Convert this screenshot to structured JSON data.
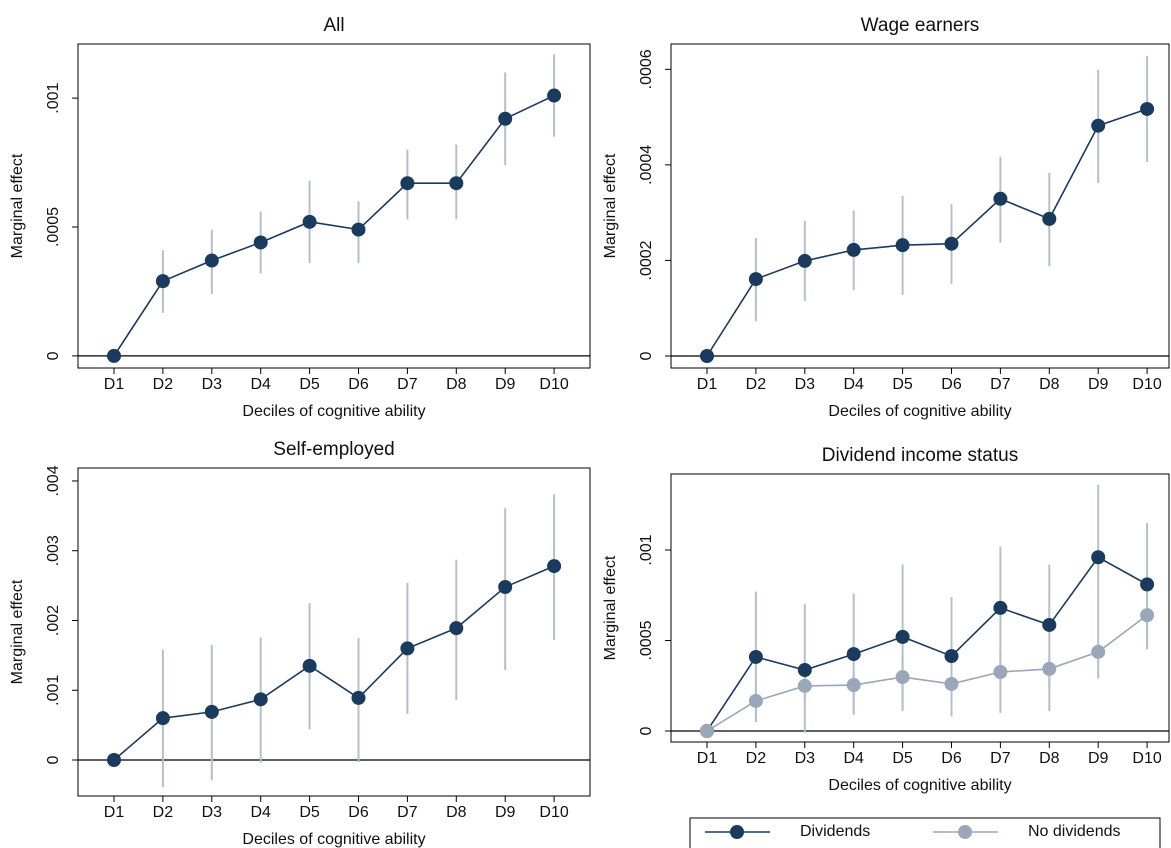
{
  "chart_data": [
    {
      "type": "line",
      "title": "All",
      "x_label": "Deciles of cognitive ability",
      "y_label": "Marginal effect",
      "categories": [
        "D1",
        "D2",
        "D3",
        "D4",
        "D5",
        "D6",
        "D7",
        "D8",
        "D9",
        "D10"
      ],
      "color": "#1a3a5e",
      "ci_color": "#b3c0cc",
      "values": [
        0,
        0.00029,
        0.00037,
        0.00044,
        0.00052,
        0.00049,
        0.00067,
        0.00067,
        0.00092,
        0.00101
      ],
      "lower": [
        null,
        0.000167,
        0.00024,
        0.00032,
        0.00036,
        0.00036,
        0.00053,
        0.00053,
        0.00074,
        0.00085
      ],
      "upper": [
        null,
        0.00041,
        0.00049,
        0.00056,
        0.00068,
        0.0006,
        0.0008,
        0.00082,
        0.0011,
        0.00117
      ],
      "ylim": [
        -4.7e-05,
        0.00121
      ],
      "yticks": [
        0,
        {
          "value": 0.0005,
          "label": ".0005"
        },
        {
          "value": 0.001,
          "label": ".001"
        }
      ]
    },
    {
      "type": "line",
      "title": "Wage earners",
      "x_label": "Deciles of cognitive ability",
      "y_label": "Marginal effect",
      "categories": [
        "D1",
        "D2",
        "D3",
        "D4",
        "D5",
        "D6",
        "D7",
        "D8",
        "D9",
        "D10"
      ],
      "color": "#1a3a5e",
      "ci_color": "#b3c0cc",
      "values": [
        0,
        0.000161,
        0.000199,
        0.000222,
        0.000232,
        0.000235,
        0.000329,
        0.000287,
        0.000482,
        0.000517
      ],
      "lower": [
        null,
        7.3e-05,
        0.000115,
        0.000138,
        0.000128,
        0.000151,
        0.000237,
        0.000188,
        0.000362,
        0.000406
      ],
      "upper": [
        null,
        0.000247,
        0.000283,
        0.000304,
        0.000335,
        0.000318,
        0.000417,
        0.000383,
        0.000599,
        0.000628
      ],
      "ylim": [
        -2.51e-05,
        0.000653
      ],
      "yticks": [
        0,
        {
          "value": 0.0002,
          "label": ".0002"
        },
        {
          "value": 0.0004,
          "label": ".0004"
        },
        {
          "value": 0.0006,
          "label": ".0006"
        }
      ]
    },
    {
      "type": "line",
      "title": "Self-employed",
      "x_label": "Deciles of cognitive ability",
      "y_label": "Marginal effect",
      "categories": [
        "D1",
        "D2",
        "D3",
        "D4",
        "D5",
        "D6",
        "D7",
        "D8",
        "D9",
        "D10"
      ],
      "color": "#1a3a5e",
      "ci_color": "#b3c0cc",
      "values": [
        0,
        0.0006,
        0.00069,
        0.00087,
        0.00135,
        0.00089,
        0.0016,
        0.00189,
        0.00248,
        0.00278
      ],
      "lower": [
        null,
        -0.00039,
        -0.00029,
        -4e-05,
        0.00044,
        -3e-05,
        0.00066,
        0.00086,
        0.00129,
        0.00172
      ],
      "upper": [
        null,
        0.00158,
        0.00165,
        0.00176,
        0.00225,
        0.00175,
        0.00254,
        0.00287,
        0.00361,
        0.00381
      ],
      "ylim": [
        -0.000516,
        0.004186
      ],
      "yticks": [
        0,
        {
          "value": 0.001,
          "label": ".001"
        },
        {
          "value": 0.002,
          "label": ".002"
        },
        {
          "value": 0.003,
          "label": ".003"
        },
        {
          "value": 0.004,
          "label": ".004"
        }
      ]
    },
    {
      "type": "line",
      "title": "Dividend income status",
      "x_label": "Deciles of cognitive ability",
      "y_label": "Marginal effect",
      "categories": [
        "D1",
        "D2",
        "D3",
        "D4",
        "D5",
        "D6",
        "D7",
        "D8",
        "D9",
        "D10"
      ],
      "ci_color": "#b3c0cc",
      "series": [
        {
          "name": "Dividends",
          "color": "#1a3a5e",
          "values": [
            0,
            0.000409,
            0.000337,
            0.000425,
            0.00052,
            0.000414,
            0.00068,
            0.000586,
            0.00096,
            0.00081
          ],
          "lower": [
            null,
            5e-05,
            -1e-05,
            9e-05,
            0.00012,
            8e-05,
            0.00034,
            0.00024,
            0.00057,
            0.00045
          ],
          "upper": [
            null,
            0.00077,
            0.0007,
            0.00076,
            0.00092,
            0.00074,
            0.00102,
            0.00092,
            0.00136,
            0.00115
          ]
        },
        {
          "name": "No dividends",
          "color": "#98a8b8",
          "values": [
            0,
            0.000166,
            0.000249,
            0.000254,
            0.000298,
            0.00026,
            0.000326,
            0.000343,
            0.000437,
            0.00064
          ],
          "lower": [
            null,
            5e-05,
            0.00017,
            0.0001,
            0.00011,
            0.0001,
            0.0001,
            0.00011,
            0.00029,
            0.00047
          ],
          "upper": [
            null,
            0.00025,
            0.00033,
            0.00033,
            0.0004,
            0.00035,
            0.00045,
            0.0004,
            0.00057,
            0.00078
          ]
        }
      ],
      "ylim": [
        -6.08e-05,
        0.00142
      ],
      "yticks": [
        0,
        {
          "value": 0.0005,
          "label": ".0005"
        },
        {
          "value": 0.001,
          "label": ".001"
        }
      ]
    }
  ]
}
